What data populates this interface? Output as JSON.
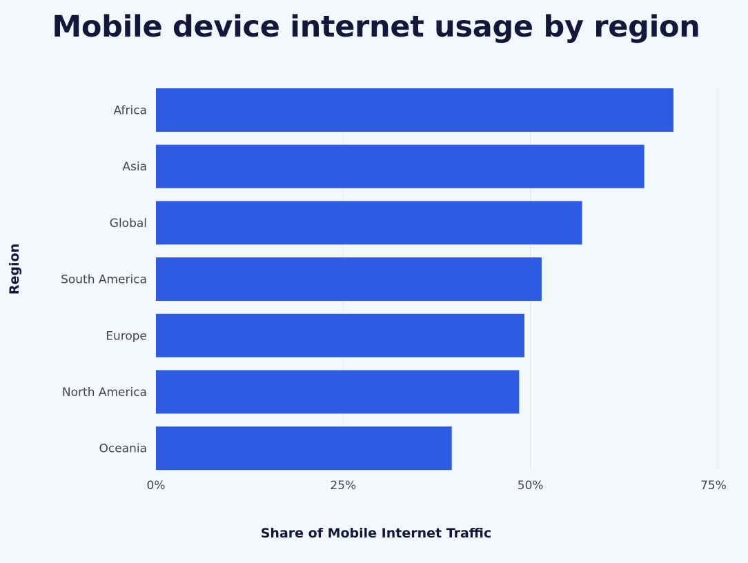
{
  "chart_data": {
    "type": "bar",
    "orientation": "horizontal",
    "title": "Mobile device internet usage by region",
    "xlabel": "Share of Mobile Internet Traffic",
    "ylabel": "Region",
    "categories": [
      "Africa",
      "Asia",
      "Global",
      "South America",
      "Europe",
      "North America",
      "Oceania"
    ],
    "values": [
      69.1,
      65.2,
      56.9,
      51.5,
      49.2,
      48.5,
      39.5
    ],
    "xlim": [
      0,
      75
    ],
    "xticks": [
      "0%",
      "25%",
      "50%",
      "75%"
    ],
    "grid": true,
    "legend": "none",
    "colors": {
      "bar": "#2d5be3",
      "grid": "#e3e8ee",
      "background": "#f3f8fc"
    }
  }
}
